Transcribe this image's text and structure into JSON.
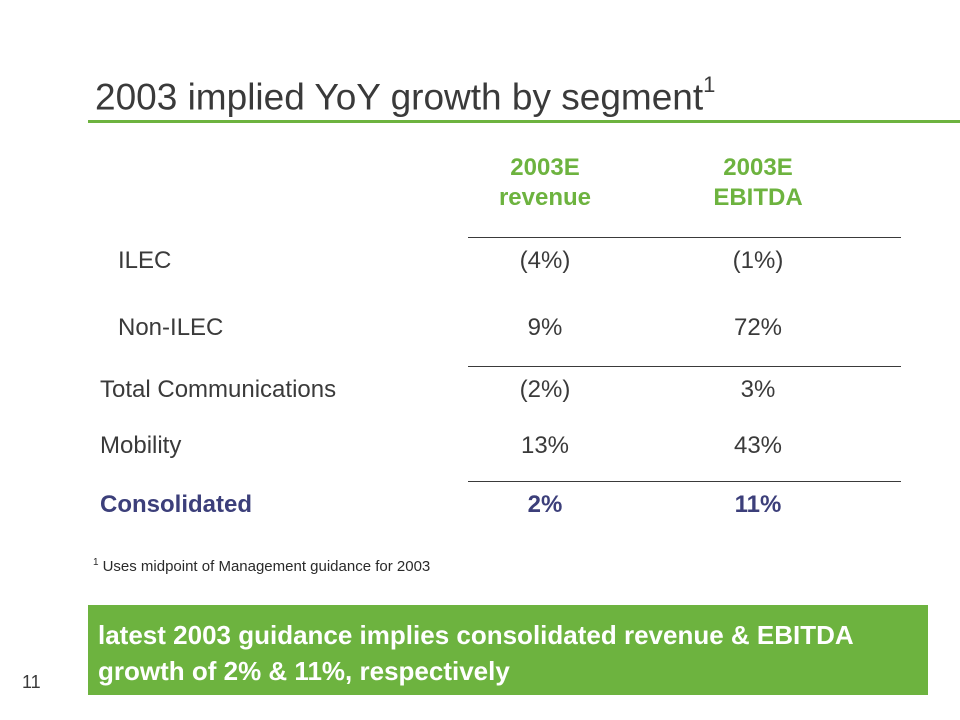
{
  "slide": {
    "title": "2003 implied YoY growth by segment",
    "title_footnote_marker": "1",
    "page_number": "11"
  },
  "table": {
    "columns": [
      {
        "line1": "2003E",
        "line2": "revenue"
      },
      {
        "line1": "2003E",
        "line2": "EBITDA"
      }
    ],
    "rows": [
      {
        "label": "ILEC",
        "revenue": "(4%)",
        "ebitda": "(1%)"
      },
      {
        "label": "Non-ILEC",
        "revenue": "9%",
        "ebitda": "72%"
      },
      {
        "label": "Total Communications",
        "revenue": "(2%)",
        "ebitda": "3%"
      },
      {
        "label": "Mobility",
        "revenue": "13%",
        "ebitda": "43%"
      },
      {
        "label": "Consolidated",
        "revenue": "2%",
        "ebitda": "11%"
      }
    ]
  },
  "footnote": {
    "marker": "1",
    "text": "Uses midpoint of Management guidance for 2003"
  },
  "callout": {
    "text": "latest 2003 guidance implies consolidated revenue & EBITDA growth of 2% & 11%, respectively"
  },
  "colors": {
    "accent_green": "#6db33f",
    "emphasis_navy": "#3c3f7a",
    "text_gray": "#3a3a3a"
  }
}
